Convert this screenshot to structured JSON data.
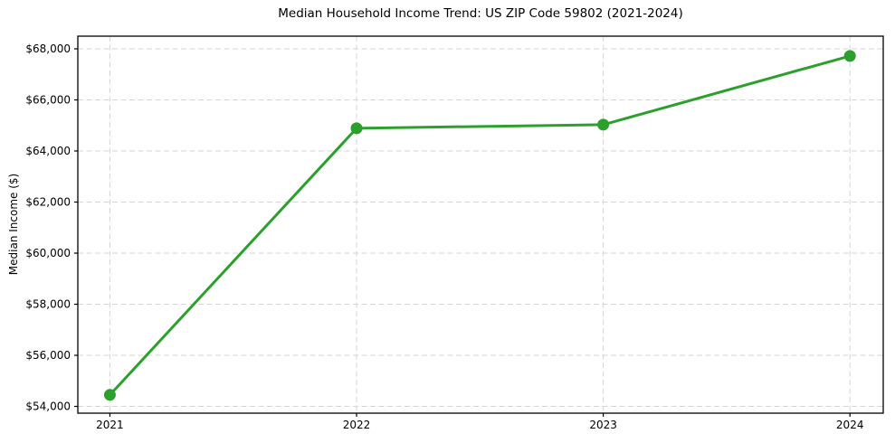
{
  "page": {
    "background": "#ffffff"
  },
  "chart_data": {
    "type": "line",
    "title": "Median Household Income Trend: US ZIP Code 59802 (2021-2024)",
    "xlabel": "",
    "ylabel": "Median Income ($)",
    "x": [
      2021,
      2022,
      2023,
      2024
    ],
    "x_tick_labels": [
      "2021",
      "2022",
      "2023",
      "2024"
    ],
    "series": [
      {
        "name": "Median Household Income",
        "values": [
          54450,
          64890,
          65030,
          67720
        ]
      }
    ],
    "y_ticks": [
      54000,
      56000,
      58000,
      60000,
      62000,
      64000,
      66000,
      68000
    ],
    "y_tick_labels": [
      "$54,000",
      "$56,000",
      "$58,000",
      "$60,000",
      "$62,000",
      "$64,000",
      "$66,000",
      "$68,000"
    ],
    "xlim": [
      2020.87,
      2024.135
    ],
    "ylim": [
      53735,
      68495
    ],
    "grid": true,
    "legend_position": "none",
    "line_color": "#2ca02c",
    "marker": "circle",
    "frame_color": "#000000",
    "grid_color": "#d6d6d6"
  }
}
